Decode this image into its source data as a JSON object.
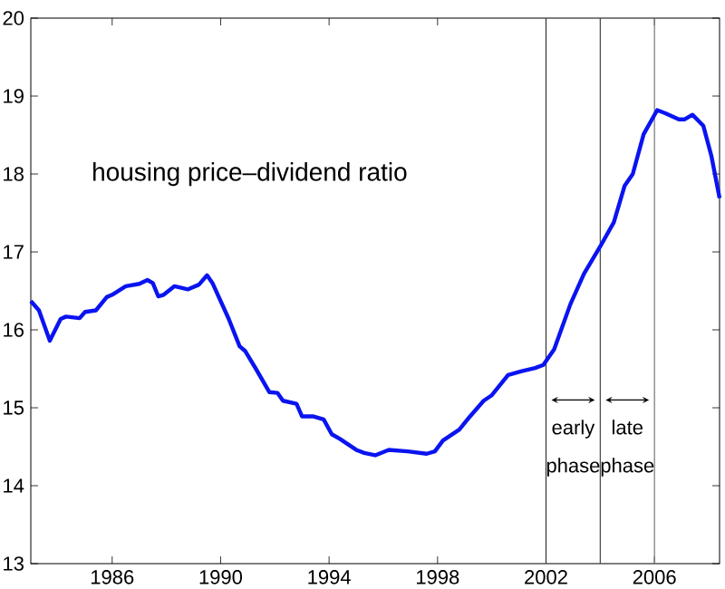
{
  "chart_data": {
    "type": "line",
    "x": [
      1983.0,
      1983.3,
      1983.7,
      1984.1,
      1984.3,
      1984.8,
      1985.0,
      1985.4,
      1985.8,
      1986.0,
      1986.5,
      1987.0,
      1987.3,
      1987.5,
      1987.7,
      1987.9,
      1988.3,
      1988.8,
      1989.2,
      1989.5,
      1989.7,
      1990.3,
      1990.7,
      1990.9,
      1991.3,
      1991.8,
      1992.1,
      1992.3,
      1992.8,
      1993.0,
      1993.4,
      1993.8,
      1994.1,
      1994.4,
      1995.0,
      1995.3,
      1995.7,
      1996.2,
      1996.9,
      1997.6,
      1997.9,
      1998.2,
      1998.8,
      1999.2,
      1999.7,
      2000.0,
      2000.6,
      2001.1,
      2001.6,
      2001.9,
      2002.3,
      2002.9,
      2003.4,
      2004.0,
      2004.5,
      2004.9,
      2005.2,
      2005.6,
      2006.1,
      2006.4,
      2006.9,
      2007.1,
      2007.4,
      2007.8,
      2008.1,
      2008.4
    ],
    "series": [
      {
        "color": "#0a14f0",
        "values": [
          16.37,
          16.25,
          15.86,
          16.14,
          16.17,
          16.15,
          16.23,
          16.25,
          16.42,
          16.45,
          16.56,
          16.59,
          16.64,
          16.6,
          16.43,
          16.45,
          16.56,
          16.52,
          16.58,
          16.7,
          16.6,
          16.14,
          15.79,
          15.73,
          15.5,
          15.2,
          15.19,
          15.09,
          15.05,
          14.89,
          14.89,
          14.85,
          14.66,
          14.6,
          14.46,
          14.42,
          14.39,
          14.46,
          14.44,
          14.41,
          14.44,
          14.58,
          14.72,
          14.89,
          15.09,
          15.16,
          15.42,
          15.47,
          15.51,
          15.55,
          15.75,
          16.33,
          16.72,
          17.07,
          17.38,
          17.85,
          18.0,
          18.51,
          18.82,
          18.78,
          18.7,
          18.7,
          18.76,
          18.62,
          18.23,
          17.69
        ]
      }
    ],
    "xlim": [
      1983,
      2008.4
    ],
    "ylim": [
      13,
      20
    ],
    "xticks": [
      1986,
      1990,
      1994,
      1998,
      2002,
      2006
    ],
    "yticks": [
      13,
      14,
      15,
      16,
      17,
      18,
      19,
      20
    ],
    "grid": false,
    "marker": "none",
    "line_style": "solid",
    "ref_lines": [
      {
        "axis": "x",
        "value": 2002,
        "color": "#333333"
      },
      {
        "axis": "x",
        "value": 2004,
        "color": "#444444"
      },
      {
        "axis": "x",
        "value": 2006,
        "color": "#777777"
      }
    ],
    "annotations": [
      "housing price–dividend ratio",
      "early phase",
      "late phase"
    ]
  }
}
